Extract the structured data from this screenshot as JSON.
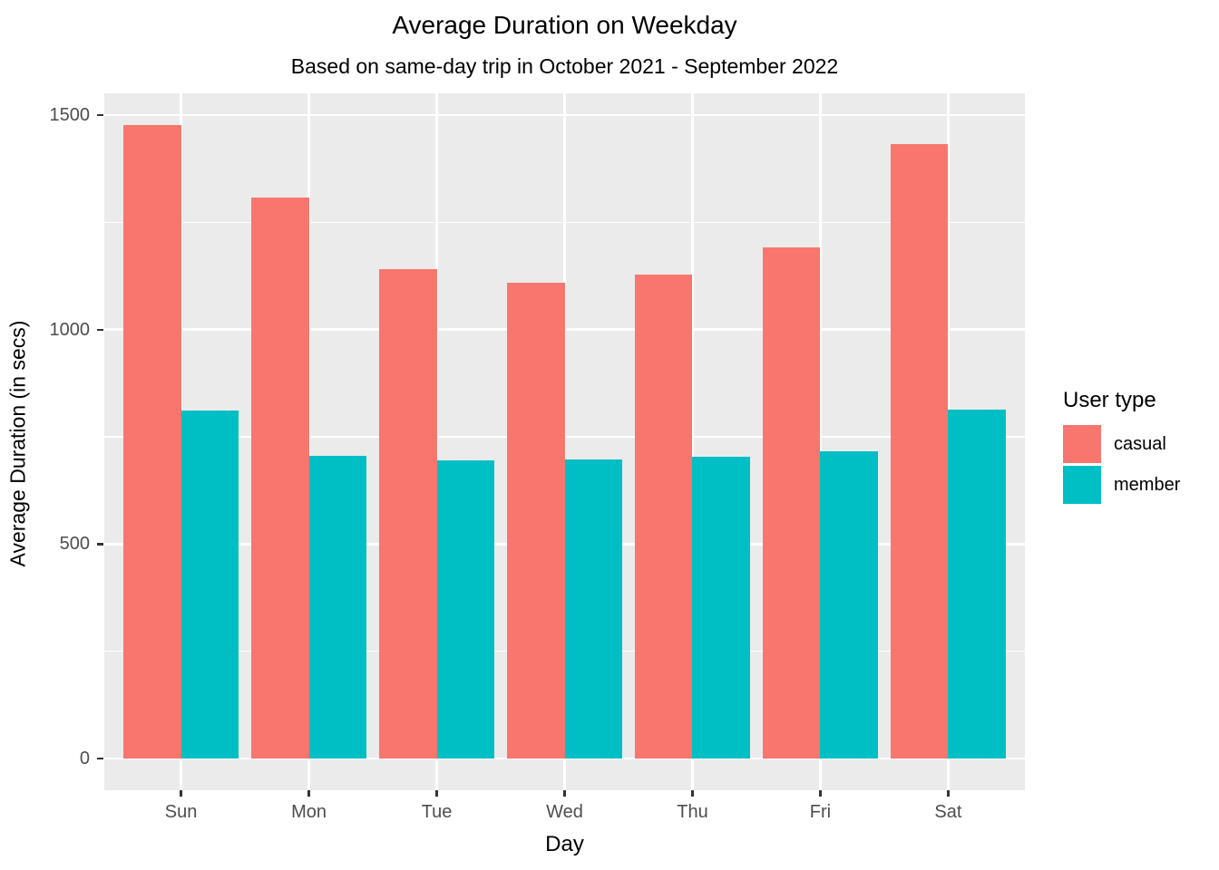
{
  "chart_data": {
    "type": "bar",
    "title": "Average Duration on Weekday",
    "subtitle": "Based on same-day trip in October 2021 - September 2022",
    "xlabel": "Day",
    "ylabel": "Average Duration (in secs)",
    "categories": [
      "Sun",
      "Mon",
      "Tue",
      "Wed",
      "Thu",
      "Fri",
      "Sat"
    ],
    "series": [
      {
        "name": "casual",
        "color": "#F8766D",
        "values": [
          1477,
          1307,
          1140,
          1109,
          1128,
          1191,
          1432
        ]
      },
      {
        "name": "member",
        "color": "#00BFC4",
        "values": [
          812,
          706,
          695,
          697,
          704,
          717,
          814
        ]
      }
    ],
    "ylim": [
      0,
      1500
    ],
    "yticks": [
      0,
      500,
      1000,
      1500
    ],
    "yminor_ticks": [
      250,
      750,
      1250
    ],
    "legend": {
      "title": "User type",
      "position": "right"
    },
    "grid": "on",
    "style": {
      "panel_bg": "#EBEBEB",
      "grid_color": "#FFFFFF",
      "tick_label_color": "#4D4D4D",
      "tick_mark_color": "#333333",
      "text_color": "#000000"
    }
  }
}
